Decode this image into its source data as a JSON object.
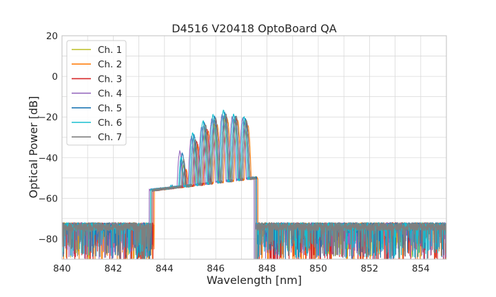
{
  "chart_data": {
    "type": "line",
    "title": "D4516 V20418 OptoBoard QA",
    "xlabel": "Wavelength [nm]",
    "ylabel": "Optical Power [dB]",
    "xlim": [
      840,
      855
    ],
    "ylim": [
      -90,
      20
    ],
    "xticks": [
      840,
      842,
      844,
      846,
      848,
      850,
      852,
      854
    ],
    "yticks": [
      -80,
      -60,
      -40,
      -20,
      0,
      20
    ],
    "xtick_labels": [
      "840",
      "842",
      "844",
      "846",
      "848",
      "850",
      "852",
      "854"
    ],
    "ytick_labels": [
      "−80",
      "−60",
      "−40",
      "−20",
      "0",
      "20"
    ],
    "grid": true,
    "legend": "top-left",
    "noise_floor_db": -74,
    "series": [
      {
        "name": "Ch. 1",
        "color": "#bcbd22",
        "band_start_nm": 843.5,
        "band_end_nm": 847.6,
        "peaks": [
          {
            "x": 843.8,
            "y": -66
          },
          {
            "x": 844.3,
            "y": -57
          },
          {
            "x": 844.75,
            "y": -44
          },
          {
            "x": 845.2,
            "y": -33
          },
          {
            "x": 845.6,
            "y": -26
          },
          {
            "x": 845.95,
            "y": -23
          },
          {
            "x": 846.35,
            "y": -20
          },
          {
            "x": 846.75,
            "y": -21
          },
          {
            "x": 847.15,
            "y": -22
          }
        ]
      },
      {
        "name": "Ch. 2",
        "color": "#ff7f0e",
        "band_start_nm": 843.6,
        "band_end_nm": 847.65,
        "peaks": [
          {
            "x": 843.9,
            "y": -67
          },
          {
            "x": 844.4,
            "y": -58
          },
          {
            "x": 844.85,
            "y": -46
          },
          {
            "x": 845.3,
            "y": -34
          },
          {
            "x": 845.7,
            "y": -27
          },
          {
            "x": 846.05,
            "y": -24
          },
          {
            "x": 846.45,
            "y": -21
          },
          {
            "x": 846.85,
            "y": -22
          },
          {
            "x": 847.25,
            "y": -24
          }
        ]
      },
      {
        "name": "Ch. 3",
        "color": "#d62728",
        "band_start_nm": 843.55,
        "band_end_nm": 847.6,
        "peaks": [
          {
            "x": 843.85,
            "y": -66
          },
          {
            "x": 844.35,
            "y": -56
          },
          {
            "x": 844.8,
            "y": -45
          },
          {
            "x": 845.25,
            "y": -32
          },
          {
            "x": 845.65,
            "y": -26
          },
          {
            "x": 846.0,
            "y": -22
          },
          {
            "x": 846.4,
            "y": -20
          },
          {
            "x": 846.8,
            "y": -21
          },
          {
            "x": 847.2,
            "y": -23
          }
        ]
      },
      {
        "name": "Ch. 4",
        "color": "#9467bd",
        "band_start_nm": 843.4,
        "band_end_nm": 847.5,
        "peaks": [
          {
            "x": 843.7,
            "y": -65
          },
          {
            "x": 844.2,
            "y": -55
          },
          {
            "x": 844.6,
            "y": -37
          },
          {
            "x": 845.05,
            "y": -30
          },
          {
            "x": 845.45,
            "y": -25
          },
          {
            "x": 845.85,
            "y": -21
          },
          {
            "x": 846.25,
            "y": -19
          },
          {
            "x": 846.65,
            "y": -20
          },
          {
            "x": 847.05,
            "y": -21
          }
        ]
      },
      {
        "name": "Ch. 5",
        "color": "#1f77b4",
        "band_start_nm": 843.5,
        "band_end_nm": 847.6,
        "peaks": [
          {
            "x": 843.8,
            "y": -65
          },
          {
            "x": 844.3,
            "y": -54
          },
          {
            "x": 844.7,
            "y": -38
          },
          {
            "x": 845.15,
            "y": -29
          },
          {
            "x": 845.55,
            "y": -23
          },
          {
            "x": 845.95,
            "y": -20
          },
          {
            "x": 846.35,
            "y": -18
          },
          {
            "x": 846.75,
            "y": -20
          },
          {
            "x": 847.15,
            "y": -21
          }
        ]
      },
      {
        "name": "Ch. 6",
        "color": "#17becf",
        "band_start_nm": 843.45,
        "band_end_nm": 847.55,
        "peaks": [
          {
            "x": 843.75,
            "y": -64
          },
          {
            "x": 844.25,
            "y": -54
          },
          {
            "x": 844.65,
            "y": -40
          },
          {
            "x": 845.1,
            "y": -28
          },
          {
            "x": 845.5,
            "y": -22
          },
          {
            "x": 845.9,
            "y": -19
          },
          {
            "x": 846.3,
            "y": -17
          },
          {
            "x": 846.7,
            "y": -19
          },
          {
            "x": 847.1,
            "y": -20
          }
        ]
      },
      {
        "name": "Ch. 7",
        "color": "#7f7f7f",
        "band_start_nm": 843.5,
        "band_end_nm": 847.55,
        "peaks": [
          {
            "x": 843.8,
            "y": -66
          },
          {
            "x": 844.3,
            "y": -56
          },
          {
            "x": 844.75,
            "y": -41
          },
          {
            "x": 845.2,
            "y": -31
          },
          {
            "x": 845.6,
            "y": -24
          },
          {
            "x": 846.0,
            "y": -21
          },
          {
            "x": 846.4,
            "y": -19
          },
          {
            "x": 846.8,
            "y": -20
          },
          {
            "x": 847.2,
            "y": -22
          }
        ]
      }
    ]
  }
}
